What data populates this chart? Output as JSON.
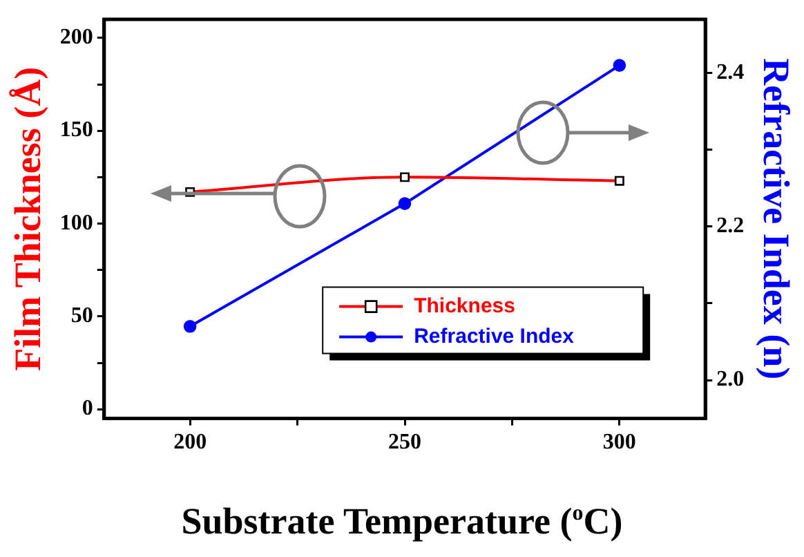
{
  "chart_data": {
    "type": "line",
    "xlabel": "Substrate Temperature ($^{o}$C)",
    "ylabel": "Film Thickness (Å)",
    "y2label": "Refractive Index (n)",
    "x": [
      200,
      250,
      300
    ],
    "series": [
      {
        "name": "Thickness",
        "color": "#ff0000",
        "values": [
          117,
          125,
          123
        ],
        "marker": "square"
      },
      {
        "name": "Refractive Index",
        "color": "#0000ff",
        "values": [
          2.07,
          2.23,
          2.41
        ],
        "axis": "y2",
        "marker": "circle"
      }
    ],
    "xlim": [
      180,
      320
    ],
    "xticks": [
      200,
      {
        "value": 225,
        "label": null
      },
      250,
      {
        "value": 275,
        "label": null
      },
      300
    ],
    "ylim": [
      -5,
      210
    ],
    "yticks": [
      0,
      {
        "value": 25,
        "label": null
      },
      50,
      {
        "value": 75,
        "label": null
      },
      100,
      {
        "value": 125,
        "label": null
      },
      150,
      {
        "value": 175,
        "label": null
      },
      200
    ],
    "y2lim": [
      1.95,
      2.47
    ],
    "y2ticks": [
      {
        "value": 2.0,
        "label": "2.0"
      },
      {
        "value": 2.1,
        "label": null
      },
      {
        "value": 2.2,
        "label": "2.2"
      },
      {
        "value": 2.3,
        "label": null
      },
      {
        "value": 2.4,
        "label": "2.4"
      }
    ],
    "legend": "bottom right",
    "grid": false,
    "line_style": "solid"
  }
}
